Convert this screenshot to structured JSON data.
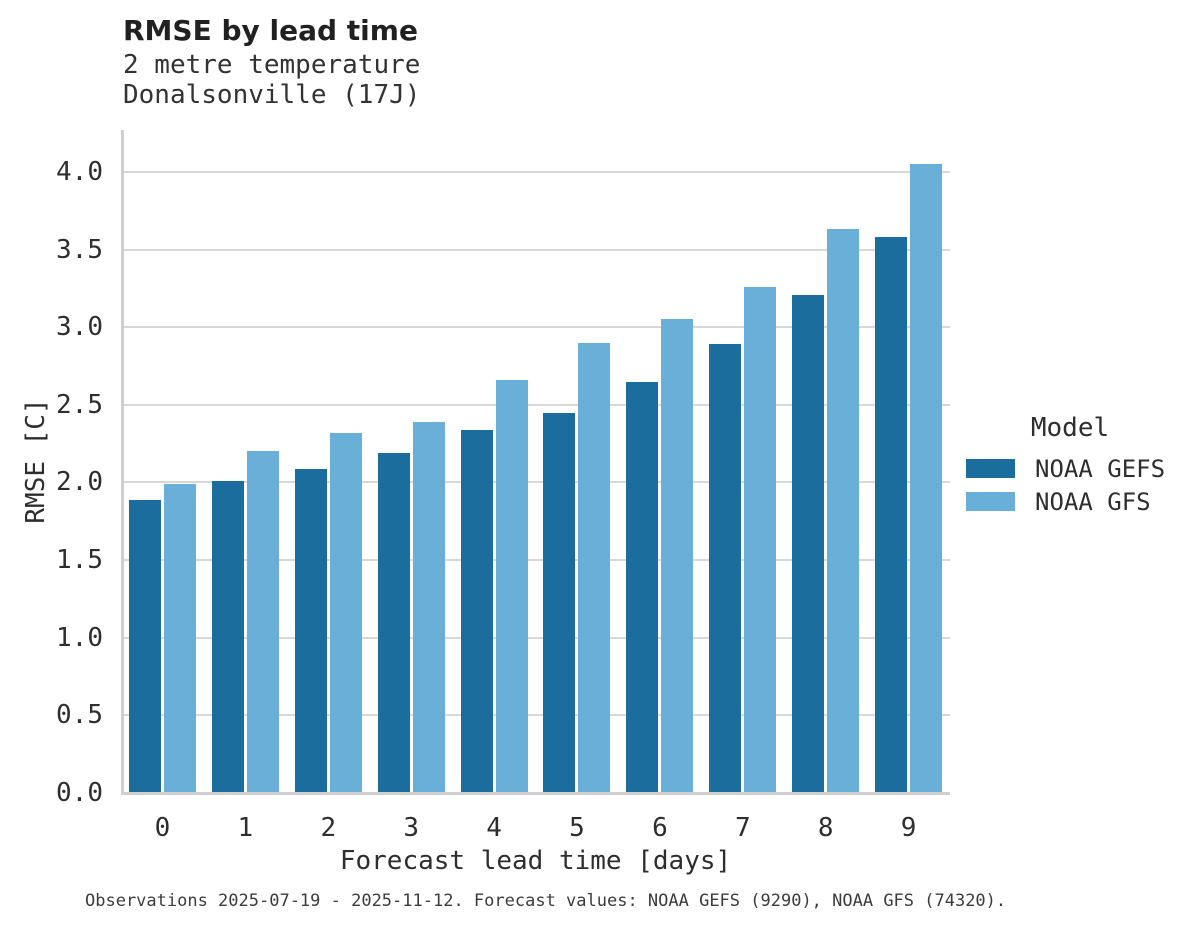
{
  "figure": {
    "title": "RMSE by lead time",
    "subtitle_line1": "2 metre temperature",
    "subtitle_line2": "Donalsonville (17J)",
    "caption": "Observations 2025-07-19 - 2025-11-12. Forecast values: NOAA GEFS (9290), NOAA GFS (74320)."
  },
  "chart_data": {
    "type": "bar",
    "title": "RMSE by lead time",
    "subtitle": [
      "2 metre temperature",
      "Donalsonville (17J)"
    ],
    "xlabel": "Forecast lead time [days]",
    "ylabel": "RMSE [C]",
    "categories": [
      "0",
      "1",
      "2",
      "3",
      "4",
      "5",
      "6",
      "7",
      "8",
      "9"
    ],
    "series": [
      {
        "name": "NOAA GEFS",
        "color": "#1b6d9e",
        "values": [
          1.89,
          2.01,
          2.09,
          2.19,
          2.34,
          2.45,
          2.65,
          2.89,
          3.21,
          3.58
        ]
      },
      {
        "name": "NOAA GFS",
        "color": "#69afd8",
        "values": [
          1.99,
          2.2,
          2.32,
          2.39,
          2.66,
          2.9,
          3.05,
          3.26,
          3.63,
          4.05
        ]
      }
    ],
    "ylim": [
      0,
      4.27
    ],
    "yticks": [
      0.0,
      0.5,
      1.0,
      1.5,
      2.0,
      2.5,
      3.0,
      3.5,
      4.0
    ],
    "ytick_labels": [
      "0.0",
      "0.5",
      "1.0",
      "1.5",
      "2.0",
      "2.5",
      "3.0",
      "3.5",
      "4.0"
    ],
    "grid": "horizontal",
    "legend_title": "Model",
    "legend_position": "right",
    "caption": "Observations 2025-07-19 - 2025-11-12. Forecast values: NOAA GEFS (9290), NOAA GFS (74320)."
  },
  "colors": {
    "gefs_bar": "#1b6d9e",
    "gfs_bar": "#69afd8",
    "gridline": "#d8d8d8",
    "spine": "#cfcfcf",
    "text": "#2e2e2e"
  }
}
